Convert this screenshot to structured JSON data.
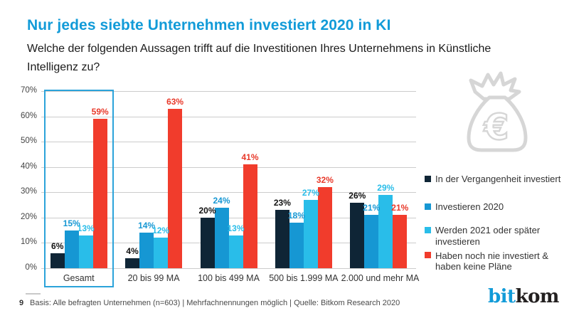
{
  "header": {
    "title": "Nur jedes siebte Unternehmen investiert 2020 in KI",
    "subtitle": "Welche der folgenden Aussagen trifft auf die Investitionen Ihres Unternehmens in Künstliche Intelligenz zu?"
  },
  "chart_data": {
    "type": "bar",
    "categories": [
      "Gesamt",
      "20 bis 99 MA",
      "100 bis 499 MA",
      "500 bis 1.999 MA",
      "2.000 und mehr MA"
    ],
    "series": [
      {
        "name": "In der Vergangenheit investiert",
        "color": "#0f2536",
        "label_color": "#111111",
        "values": [
          6,
          4,
          20,
          23,
          26
        ]
      },
      {
        "name": "Investieren 2020",
        "color": "#1697d3",
        "label_color": "#1697d3",
        "values": [
          15,
          14,
          24,
          18,
          21
        ]
      },
      {
        "name": "Werden 2021 oder später investieren",
        "color": "#29bde9",
        "label_color": "#29bde9",
        "values": [
          13,
          12,
          13,
          27,
          29
        ]
      },
      {
        "name": "Haben noch nie investiert & haben keine Pläne",
        "color": "#f13c2c",
        "label_color": "#e8392a",
        "values": [
          59,
          63,
          41,
          32,
          21
        ]
      }
    ],
    "ylim": [
      0,
      70
    ],
    "y_ticks": [
      "70%",
      "60%",
      "50%",
      "40%",
      "30%",
      "20%",
      "10%",
      "0%"
    ],
    "value_suffix": "%",
    "grid": true,
    "legend_position": "right",
    "highlight_category": "Gesamt"
  },
  "icons": {
    "money_bag_symbol": "€"
  },
  "footer": {
    "page_number": "9",
    "source": "Basis: Alle befragten Unternehmen (n=603) | Mehrfachnennungen möglich | Quelle: Bitkom Research 2020"
  },
  "logo": {
    "blue_part": "bit",
    "dark_part": "kom"
  },
  "colors": {
    "accent_blue": "#129bd8",
    "highlight_border": "#2ba3da",
    "gridline": "#cccccc",
    "icon_gray": "#d6d6d6"
  }
}
